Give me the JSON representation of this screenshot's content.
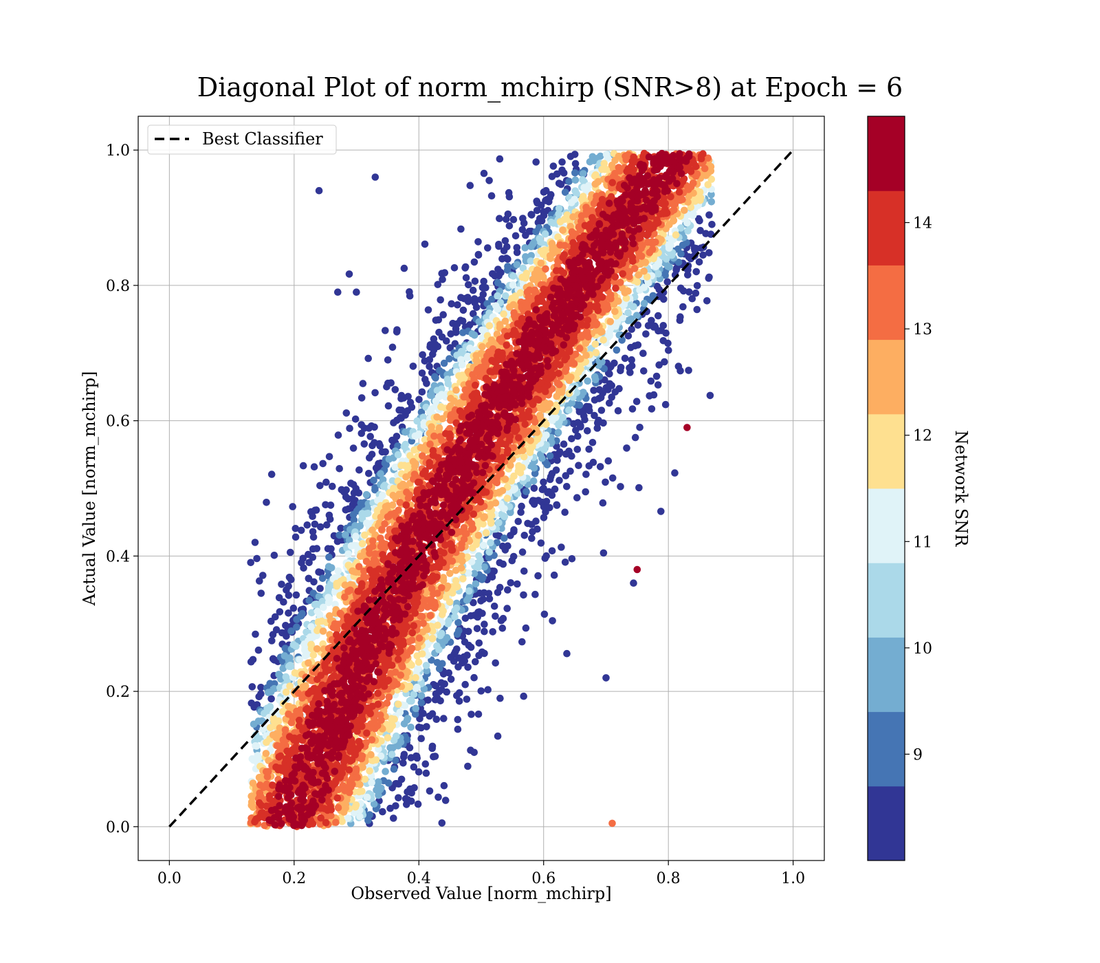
{
  "chart_data": {
    "type": "scatter",
    "title": "Diagonal Plot of norm_mchirp (SNR>8) at Epoch = 6",
    "xlabel": "Observed Value [norm_mchirp]",
    "ylabel": "Actual Value [norm_mchirp]",
    "xlim": [
      -0.05,
      1.05
    ],
    "ylim": [
      -0.05,
      1.05
    ],
    "x_ticks": [
      "0.0",
      "0.2",
      "0.4",
      "0.6",
      "0.8",
      "1.0"
    ],
    "y_ticks": [
      "0.0",
      "0.2",
      "0.4",
      "0.6",
      "0.8",
      "1.0"
    ],
    "grid": true,
    "legend": {
      "position": "upper-left",
      "entries": [
        {
          "label": "Best Classifier",
          "style": "dashed",
          "color": "#000000"
        }
      ]
    },
    "reference_line": {
      "label": "Best Classifier",
      "x": [
        0.0,
        1.0
      ],
      "y": [
        0.0,
        1.0
      ]
    },
    "colorbar": {
      "label": "Network SNR",
      "min": 8,
      "max": 15,
      "ticks": [
        "9",
        "10",
        "11",
        "12",
        "13",
        "14"
      ],
      "tick_values": [
        9,
        10,
        11,
        12,
        13,
        14
      ],
      "colors": [
        "#313695",
        "#4575b4",
        "#74add1",
        "#abd9e9",
        "#e0f3f8",
        "#fee090",
        "#fdae61",
        "#f46d43",
        "#d73027",
        "#a50026"
      ]
    },
    "scatter_description": {
      "point_count_approx": "thousands",
      "distribution": "dense band along the diagonal, x roughly 0.13 to 0.87, y roughly 0.0 to 1.0; high-SNR points (red) concentrated near the diagonal, low-SNR points (blue) spread farther from it",
      "sample_points": [
        {
          "x": 0.24,
          "y": 0.94,
          "snr": 8.2
        },
        {
          "x": 0.33,
          "y": 0.96,
          "snr": 8.5
        },
        {
          "x": 0.16,
          "y": 0.01,
          "snr": 14.8
        },
        {
          "x": 0.71,
          "y": 0.005,
          "snr": 13.5
        },
        {
          "x": 0.7,
          "y": 0.22,
          "snr": 8.4
        },
        {
          "x": 0.75,
          "y": 0.38,
          "snr": 14.8
        },
        {
          "x": 0.83,
          "y": 0.59,
          "snr": 14.8
        },
        {
          "x": 0.41,
          "y": 0.58,
          "snr": 9.2
        },
        {
          "x": 0.27,
          "y": 0.79,
          "snr": 8.6
        }
      ]
    }
  }
}
